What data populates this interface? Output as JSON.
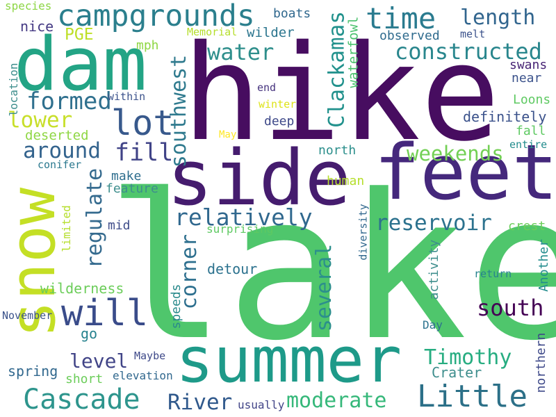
{
  "words": [
    {
      "text": "lake",
      "color": "#4fc66c"
    },
    {
      "text": "hike",
      "color": "#470d60"
    },
    {
      "text": "feet",
      "color": "#45287c"
    },
    {
      "text": "side",
      "color": "#451c6e"
    },
    {
      "text": "summer",
      "color": "#1e9a89"
    },
    {
      "text": "snow",
      "color": "#c4df25"
    },
    {
      "text": "dam",
      "color": "#23a485"
    },
    {
      "text": "campgrounds",
      "color": "#2b7f8d"
    },
    {
      "text": "time",
      "color": "#2a7b8f"
    },
    {
      "text": "length",
      "color": "#31658e"
    },
    {
      "text": "constructed",
      "color": "#29868d"
    },
    {
      "text": "Cascade",
      "color": "#2e958d"
    },
    {
      "text": "Little",
      "color": "#2c7088"
    },
    {
      "text": "moderate",
      "color": "#36b87a"
    },
    {
      "text": "River",
      "color": "#30598c"
    },
    {
      "text": "will",
      "color": "#3a4c8a"
    },
    {
      "text": "lot",
      "color": "#38598c"
    },
    {
      "text": "water",
      "color": "#2f8f8c"
    },
    {
      "text": "formed",
      "color": "#2f708e"
    },
    {
      "text": "lower",
      "color": "#c8df2b"
    },
    {
      "text": "around",
      "color": "#33638d"
    },
    {
      "text": "fill",
      "color": "#404387"
    },
    {
      "text": "southwest",
      "color": "#2f7a8e"
    },
    {
      "text": "Clackamas",
      "color": "#21918c"
    },
    {
      "text": "relatively",
      "color": "#30688e"
    },
    {
      "text": "reservoir",
      "color": "#2c728e"
    },
    {
      "text": "weekends",
      "color": "#73d055"
    },
    {
      "text": "south",
      "color": "#440154"
    },
    {
      "text": "regulate",
      "color": "#346a8e"
    },
    {
      "text": "corner",
      "color": "#2d6f8e"
    },
    {
      "text": "several",
      "color": "#2c8f8c"
    },
    {
      "text": "level",
      "color": "#414487"
    },
    {
      "text": "Timothy",
      "color": "#27ad81"
    },
    {
      "text": "PGE",
      "color": "#bddf26"
    },
    {
      "text": "wilder",
      "color": "#2b758e"
    },
    {
      "text": "boats",
      "color": "#30688e"
    },
    {
      "text": "observed",
      "color": "#2f6b8e"
    },
    {
      "text": "melt",
      "color": "#3b528b"
    },
    {
      "text": "mph",
      "color": "#8fd744"
    },
    {
      "text": "nice",
      "color": "#443983"
    },
    {
      "text": "species",
      "color": "#8dd645"
    },
    {
      "text": "Memorial",
      "color": "#b5de2b"
    },
    {
      "text": "waterfowl",
      "color": "#4ac16d"
    },
    {
      "text": "swans",
      "color": "#482475"
    },
    {
      "text": "near",
      "color": "#3b528b"
    },
    {
      "text": "end",
      "color": "#46337e"
    },
    {
      "text": "winter",
      "color": "#dde318"
    },
    {
      "text": "within",
      "color": "#3b528b"
    },
    {
      "text": "location",
      "color": "#3e8e8d"
    },
    {
      "text": "Loons",
      "color": "#5ec962"
    },
    {
      "text": "definitely",
      "color": "#3b528b"
    },
    {
      "text": "deep",
      "color": "#3e4989"
    },
    {
      "text": "deserted",
      "color": "#8fd744"
    },
    {
      "text": "fall",
      "color": "#5ec962"
    },
    {
      "text": "May",
      "color": "#fde725"
    },
    {
      "text": "entire",
      "color": "#228c8d"
    },
    {
      "text": "north",
      "color": "#2c8f8c"
    },
    {
      "text": "conifer",
      "color": "#2a788e"
    },
    {
      "text": "make",
      "color": "#2e6e8e"
    },
    {
      "text": "feature",
      "color": "#3e8e8d"
    },
    {
      "text": "human",
      "color": "#b5de2b"
    },
    {
      "text": "limited",
      "color": "#b5de2b"
    },
    {
      "text": "mid",
      "color": "#3e4c8a"
    },
    {
      "text": "surprising",
      "color": "#5ec962"
    },
    {
      "text": "crest",
      "color": "#6ccd5a"
    },
    {
      "text": "diversity",
      "color": "#31688e"
    },
    {
      "text": "activity",
      "color": "#3e8e8d"
    },
    {
      "text": "Another",
      "color": "#228c8d"
    },
    {
      "text": "detour",
      "color": "#2c728e"
    },
    {
      "text": "return",
      "color": "#26828e"
    },
    {
      "text": "wilderness",
      "color": "#6ccd5a"
    },
    {
      "text": "speeds",
      "color": "#2a8a8c"
    },
    {
      "text": "November",
      "color": "#3b528b"
    },
    {
      "text": "go",
      "color": "#26828e"
    },
    {
      "text": "Day",
      "color": "#2c728e"
    },
    {
      "text": "northern",
      "color": "#3e4989"
    },
    {
      "text": "Maybe",
      "color": "#3e4989"
    },
    {
      "text": "spring",
      "color": "#31688e"
    },
    {
      "text": "short",
      "color": "#6ccd5a"
    },
    {
      "text": "elevation",
      "color": "#31688e"
    },
    {
      "text": "Crater",
      "color": "#3e8e8d"
    },
    {
      "text": "usually",
      "color": "#414487"
    }
  ]
}
